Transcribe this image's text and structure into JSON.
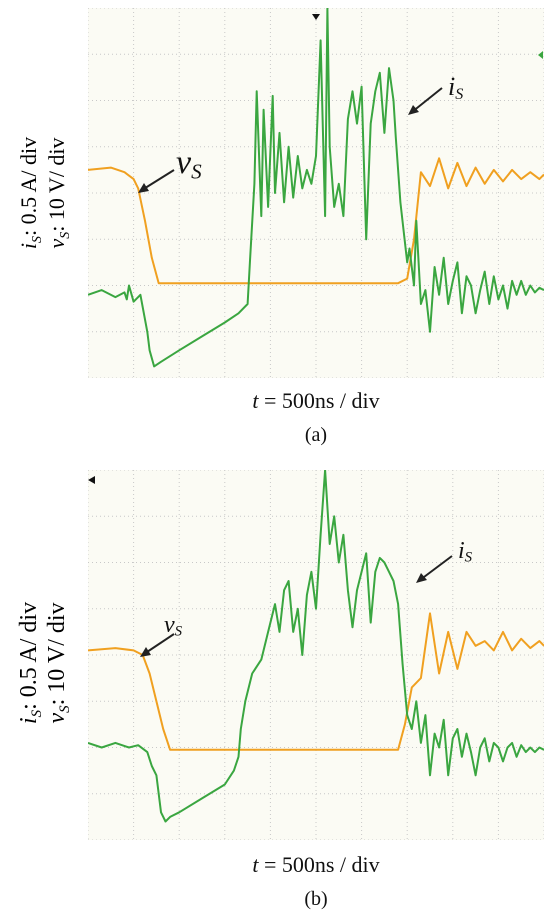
{
  "chart_data": [
    {
      "type": "line",
      "ylabel_current": "i",
      "ylabel_current_sub": "S",
      "ylabel_current_scale": ": 0.5 A/ div",
      "ylabel_voltage": "v",
      "ylabel_voltage_sub": "S",
      "ylabel_voltage_scale": ": 10 V/ div",
      "xlabel_var": "t",
      "xlabel_scale": " = 500ns / div",
      "caption": "(a)",
      "annotations": {
        "current": "i",
        "current_sub": "S",
        "voltage": "v",
        "voltage_sub": "S"
      },
      "grid": true,
      "x_divisions": 10,
      "y_divisions": 8,
      "xlim_div": [
        0,
        10
      ],
      "ylim_div": [
        -4,
        4
      ],
      "colors": {
        "voltage": "#f0a020",
        "current": "#3aa640",
        "grid": "#c8c8c8"
      },
      "series": [
        {
          "name": "vS",
          "x": [
            0,
            0.5,
            0.8,
            1.0,
            1.1,
            1.25,
            1.4,
            1.55,
            2.0,
            3.0,
            4.0,
            5.0,
            6.0,
            6.8,
            7.0,
            7.15,
            7.3,
            7.5,
            7.7,
            7.9,
            8.1,
            8.3,
            8.5,
            8.7,
            8.9,
            9.1,
            9.3,
            9.5,
            9.7,
            9.9,
            10
          ],
          "y": [
            0.5,
            0.55,
            0.45,
            0.3,
            0.1,
            -0.6,
            -1.4,
            -1.95,
            -1.95,
            -1.95,
            -1.95,
            -1.95,
            -1.95,
            -1.95,
            -1.85,
            -1.0,
            0.45,
            0.15,
            0.75,
            0.1,
            0.65,
            0.15,
            0.55,
            0.2,
            0.5,
            0.25,
            0.5,
            0.3,
            0.45,
            0.3,
            0.4
          ]
        },
        {
          "name": "iS",
          "x": [
            0,
            0.3,
            0.6,
            0.8,
            0.85,
            0.9,
            1.0,
            1.15,
            1.3,
            1.35,
            1.45,
            1.6,
            2.0,
            2.5,
            3.0,
            3.3,
            3.5,
            3.55,
            3.65,
            3.7,
            3.8,
            3.85,
            3.95,
            4.05,
            4.1,
            4.2,
            4.3,
            4.4,
            4.5,
            4.6,
            4.7,
            4.8,
            4.9,
            5.0,
            5.1,
            5.2,
            5.25,
            5.3,
            5.4,
            5.5,
            5.6,
            5.7,
            5.8,
            5.9,
            6.0,
            6.1,
            6.2,
            6.3,
            6.4,
            6.5,
            6.6,
            6.7,
            6.75,
            6.85,
            7.0,
            7.05,
            7.15,
            7.2,
            7.3,
            7.4,
            7.5,
            7.6,
            7.7,
            7.8,
            7.9,
            8.0,
            8.1,
            8.2,
            8.3,
            8.4,
            8.5,
            8.6,
            8.7,
            8.8,
            8.9,
            9.0,
            9.1,
            9.2,
            9.3,
            9.4,
            9.5,
            9.6,
            9.7,
            9.8,
            9.9,
            10
          ],
          "y": [
            -2.2,
            -2.1,
            -2.25,
            -2.15,
            -2.3,
            -2.0,
            -2.35,
            -2.2,
            -3.0,
            -3.4,
            -3.75,
            -3.65,
            -3.4,
            -3.1,
            -2.8,
            -2.6,
            -2.4,
            -1.5,
            0.2,
            2.2,
            -0.5,
            1.8,
            -0.3,
            2.1,
            0.0,
            1.3,
            -0.2,
            1.0,
            -0.1,
            0.8,
            0.1,
            0.5,
            0.2,
            0.8,
            3.3,
            -0.5,
            4.0,
            1.0,
            -0.3,
            0.2,
            -0.5,
            1.6,
            2.2,
            1.5,
            2.3,
            -1.0,
            1.5,
            2.2,
            2.6,
            1.3,
            2.7,
            2.0,
            1.2,
            -0.2,
            -1.5,
            -1.2,
            -2.0,
            -0.6,
            -2.4,
            -2.1,
            -3.0,
            -1.6,
            -2.2,
            -1.4,
            -2.4,
            -1.9,
            -1.5,
            -2.6,
            -1.8,
            -2.0,
            -2.6,
            -2.1,
            -1.7,
            -2.4,
            -1.8,
            -2.3,
            -2.0,
            -2.5,
            -1.9,
            -2.2,
            -1.9,
            -2.2,
            -2.0,
            -2.15,
            -2.05,
            -2.1
          ]
        }
      ]
    },
    {
      "type": "line",
      "ylabel_current": "i",
      "ylabel_current_sub": "S",
      "ylabel_current_scale": ": 0.5 A/ div",
      "ylabel_voltage": "v",
      "ylabel_voltage_sub": "S",
      "ylabel_voltage_scale": ": 10 V/ div",
      "xlabel_var": "t",
      "xlabel_scale": " = 500ns / div",
      "caption": "(b)",
      "annotations": {
        "current": "i",
        "current_sub": "S",
        "voltage": "v",
        "voltage_sub": "S"
      },
      "grid": true,
      "x_divisions": 10,
      "y_divisions": 8,
      "xlim_div": [
        0,
        10
      ],
      "ylim_div": [
        -4,
        4
      ],
      "colors": {
        "voltage": "#f0a020",
        "current": "#3aa640",
        "grid": "#c8c8c8"
      },
      "series": [
        {
          "name": "vS",
          "x": [
            0,
            0.6,
            1.0,
            1.2,
            1.35,
            1.5,
            1.65,
            1.8,
            2.0,
            3.0,
            4.0,
            5.0,
            6.0,
            6.5,
            6.8,
            6.95,
            7.1,
            7.3,
            7.5,
            7.7,
            7.9,
            8.1,
            8.3,
            8.5,
            8.7,
            8.9,
            9.1,
            9.3,
            9.5,
            9.7,
            9.9,
            10
          ],
          "y": [
            0.1,
            0.15,
            0.1,
            0.0,
            -0.4,
            -1.0,
            -1.6,
            -2.05,
            -2.05,
            -2.05,
            -2.05,
            -2.05,
            -2.05,
            -2.05,
            -2.05,
            -1.5,
            -0.7,
            -0.5,
            0.9,
            -0.4,
            0.5,
            -0.3,
            0.5,
            0.2,
            0.3,
            0.1,
            0.5,
            0.1,
            0.35,
            0.15,
            0.3,
            0.2
          ]
        },
        {
          "name": "iS",
          "x": [
            0,
            0.3,
            0.6,
            0.9,
            1.1,
            1.3,
            1.4,
            1.5,
            1.6,
            1.7,
            1.8,
            2.0,
            2.5,
            3.0,
            3.2,
            3.3,
            3.35,
            3.45,
            3.6,
            3.8,
            4.0,
            4.1,
            4.2,
            4.3,
            4.4,
            4.5,
            4.6,
            4.7,
            4.8,
            4.9,
            5.0,
            5.1,
            5.2,
            5.3,
            5.4,
            5.5,
            5.6,
            5.7,
            5.8,
            5.9,
            6.0,
            6.1,
            6.2,
            6.3,
            6.4,
            6.5,
            6.6,
            6.7,
            6.8,
            6.9,
            7.0,
            7.1,
            7.2,
            7.3,
            7.4,
            7.5,
            7.6,
            7.7,
            7.8,
            7.9,
            8.0,
            8.1,
            8.2,
            8.3,
            8.4,
            8.5,
            8.6,
            8.7,
            8.8,
            8.9,
            9.0,
            9.1,
            9.2,
            9.3,
            9.4,
            9.5,
            9.6,
            9.7,
            9.8,
            9.9,
            10
          ],
          "y": [
            -1.9,
            -2.0,
            -1.9,
            -2.0,
            -1.95,
            -2.1,
            -2.4,
            -2.6,
            -3.4,
            -3.6,
            -3.5,
            -3.4,
            -3.1,
            -2.8,
            -2.5,
            -2.2,
            -1.6,
            -1.0,
            -0.4,
            -0.1,
            0.7,
            1.1,
            0.5,
            1.4,
            1.6,
            0.5,
            1.0,
            0.0,
            1.3,
            1.8,
            1.0,
            2.6,
            4.0,
            2.4,
            3.0,
            2.0,
            2.6,
            1.4,
            0.6,
            1.4,
            1.8,
            2.2,
            0.7,
            1.8,
            2.1,
            2.0,
            1.8,
            1.6,
            1.1,
            -0.2,
            -1.3,
            -1.6,
            -1.0,
            -1.9,
            -1.3,
            -2.6,
            -1.7,
            -2.0,
            -1.4,
            -2.6,
            -1.8,
            -1.6,
            -2.2,
            -1.7,
            -2.1,
            -2.6,
            -2.0,
            -1.8,
            -2.3,
            -1.9,
            -2.0,
            -2.3,
            -2.0,
            -1.9,
            -2.2,
            -1.95,
            -2.1,
            -2.0,
            -2.1,
            -2.0,
            -2.05
          ]
        }
      ]
    }
  ]
}
